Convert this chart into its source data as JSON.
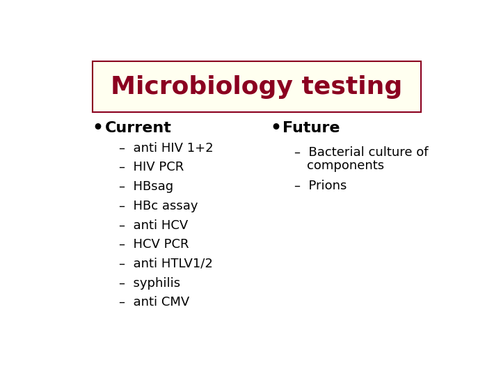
{
  "title": "Microbiology testing",
  "title_color": "#8B0020",
  "title_fontsize": 26,
  "title_bg_color": "#FFFFF0",
  "title_border_color": "#8B0020",
  "bg_color": "#FFFFFF",
  "text_color": "#000000",
  "header_fontsize": 16,
  "item_fontsize": 13,
  "left_header": "Current",
  "right_header": "Future",
  "left_items": [
    "anti HIV 1+2",
    "HIV PCR",
    "HBsag",
    "HBc assay",
    "anti HCV",
    "HCV PCR",
    "anti HTLV1/2",
    "syphilis",
    "anti CMV"
  ],
  "right_item1_line1": "Bacterial culture of",
  "right_item1_line2": "components",
  "right_item2": "Prions"
}
